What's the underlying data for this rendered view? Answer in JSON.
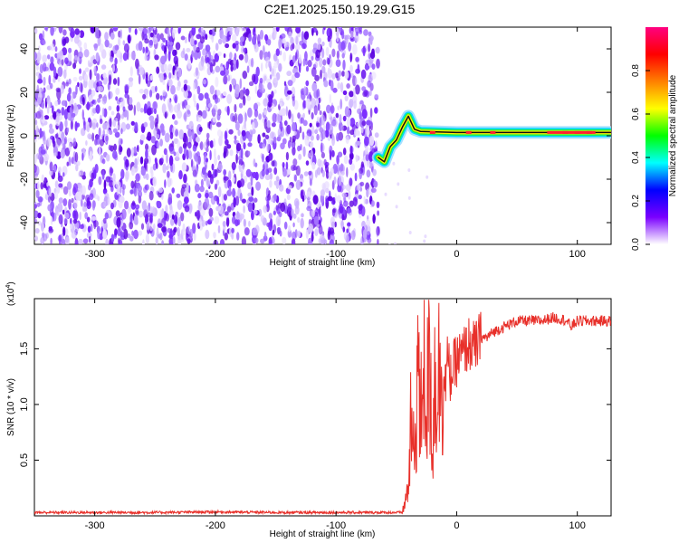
{
  "title": "C2E1.2025.150.19.29.G15",
  "chart_data": [
    {
      "type": "heatmap",
      "xlabel": "Height of straight line (km)",
      "ylabel": "Frequency (Hz)",
      "xlim": [
        -350,
        128
      ],
      "ylim": [
        -50,
        50
      ],
      "x_ticks": [
        -300,
        -200,
        -100,
        0,
        100
      ],
      "y_ticks": [
        -40,
        -20,
        0,
        20,
        40
      ],
      "colorbar": {
        "label": "Normalized spectral amplitude",
        "range": [
          0,
          1
        ],
        "ticks": [
          "0.0",
          "0.2",
          "0.4",
          "0.6",
          "0.8"
        ],
        "colors": [
          "#ffffff",
          "#7a00ff",
          "#0000ff",
          "#00ffff",
          "#00ff00",
          "#ffff00",
          "#ff8000",
          "#ff0000",
          "#ff0080"
        ]
      },
      "regions": [
        {
          "name": "noise",
          "x_range": [
            -350,
            -65
          ],
          "freq_range": [
            -50,
            48
          ],
          "amplitude_range": [
            0.05,
            0.2
          ]
        },
        {
          "name": "tone",
          "x_range": [
            -65,
            128
          ],
          "frequency_path": [
            [
              -65,
              -10
            ],
            [
              -60,
              -12
            ],
            [
              -55,
              -5
            ],
            [
              -50,
              -2
            ],
            [
              -45,
              4
            ],
            [
              -40,
              9
            ],
            [
              -35,
              3
            ],
            [
              -30,
              2
            ],
            [
              0,
              1.5
            ],
            [
              128,
              1.5
            ]
          ],
          "amplitude": 0.9
        }
      ]
    },
    {
      "type": "line",
      "xlabel": "Height of straight line (km)",
      "ylabel": "SNR (10 * v/v)",
      "scale_label": "(x10",
      "scale_exp": "4",
      "xlim": [
        -350,
        128
      ],
      "ylim": [
        0,
        19500
      ],
      "x_ticks": [
        -300,
        -200,
        -100,
        0,
        100
      ],
      "y_ticks": [
        "0.5",
        "1.0",
        "1.5"
      ],
      "y_tick_values": [
        5000,
        10000,
        15000
      ],
      "series": [
        {
          "color": "#e8302a",
          "x": [
            -350,
            -300,
            -250,
            -200,
            -150,
            -100,
            -60,
            -45,
            -40,
            -38,
            -35,
            -32,
            -30,
            -28,
            -25,
            -22,
            -20,
            -18,
            -15,
            -12,
            -10,
            -8,
            -5,
            0,
            5,
            10,
            15,
            20,
            25,
            30,
            40,
            50,
            60,
            70,
            80,
            90,
            95,
            100,
            110,
            120,
            128
          ],
          "y": [
            300,
            300,
            300,
            350,
            300,
            300,
            300,
            300,
            2500,
            8000,
            5000,
            15500,
            6000,
            16000,
            10000,
            14000,
            6000,
            13000,
            12000,
            15500,
            11000,
            14000,
            12500,
            14000,
            14500,
            15500,
            15000,
            16000,
            16000,
            16500,
            17000,
            17500,
            17500,
            17500,
            17800,
            17600,
            17000,
            17500,
            17500,
            17500,
            17500
          ]
        }
      ]
    }
  ]
}
